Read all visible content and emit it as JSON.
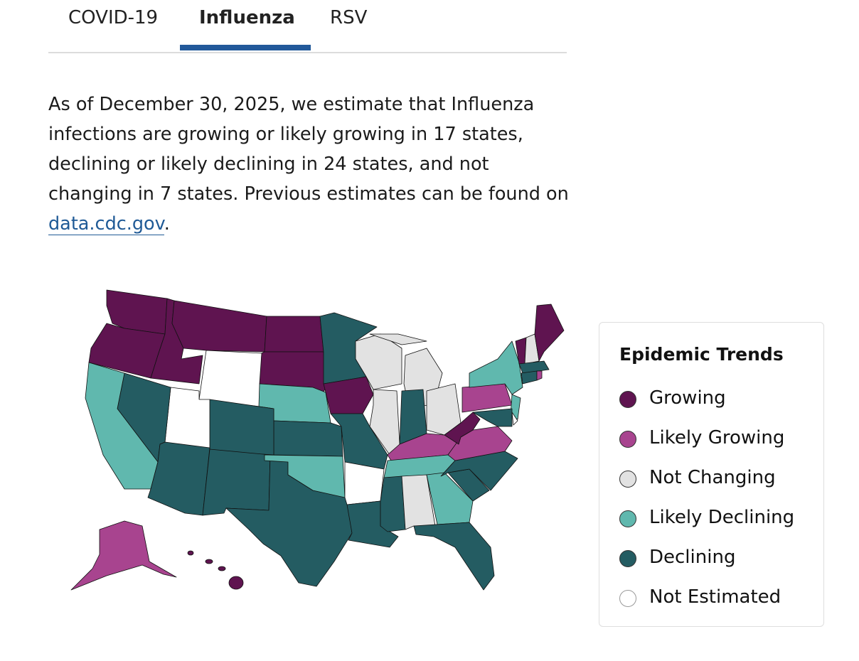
{
  "tabs": {
    "items": [
      "COVID-19",
      "Influenza",
      "RSV"
    ],
    "active": 1
  },
  "paragraph": {
    "text": "As of December 30, 2025, we estimate that Influenza infections are growing or likely growing in 17 states, declining or likely declining in 24 states, and not changing in 7 states. Previous estimates can be found on ",
    "link": "data.cdc.gov",
    "end": "."
  },
  "legend": {
    "title": "Epidemic Trends",
    "items": [
      {
        "label": "Growing",
        "color": "#5f1450"
      },
      {
        "label": "Likely Growing",
        "color": "#a8448f"
      },
      {
        "label": "Not Changing",
        "color": "#e2e2e2"
      },
      {
        "label": "Likely Declining",
        "color": "#60b8ae"
      },
      {
        "label": "Declining",
        "color": "#245c62"
      },
      {
        "label": "Not Estimated",
        "color": "#ffffff"
      }
    ]
  }
}
